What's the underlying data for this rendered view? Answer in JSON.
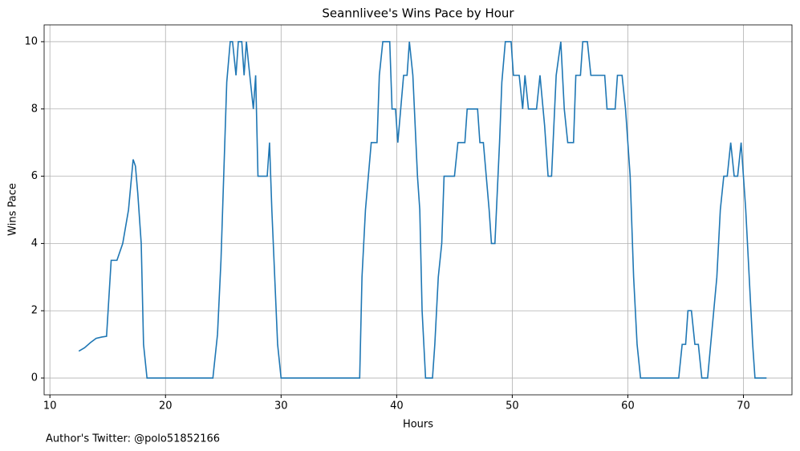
{
  "chart_data": {
    "type": "line",
    "title": "Seannlivee's Wins Pace by Hour",
    "xlabel": "Hours",
    "ylabel": "Wins Pace",
    "footnote": "Author's Twitter: @polo51852166",
    "grid": true,
    "xlim": [
      9.5,
      74.2
    ],
    "ylim": [
      -0.5,
      10.5
    ],
    "xticks": [
      10,
      20,
      30,
      40,
      50,
      60,
      70
    ],
    "yticks": [
      0,
      2,
      4,
      6,
      8,
      10
    ],
    "series": [
      {
        "color": "#1f77b4",
        "x": [
          12.5,
          13,
          13.5,
          14,
          14.5,
          14.9,
          15.3,
          15.8,
          16.3,
          16.8,
          17.2,
          17.4,
          17.6,
          17.9,
          18.1,
          18.4,
          24.1,
          24.5,
          24.8,
          25.3,
          25.6,
          25.8,
          26.1,
          26.3,
          26.6,
          26.8,
          27.0,
          27.2,
          27.6,
          27.8,
          28.0,
          28.8,
          29.0,
          29.2,
          29.7,
          30.0,
          36.8,
          37.0,
          37.3,
          37.8,
          38.3,
          38.5,
          38.8,
          39.4,
          39.6,
          39.9,
          40.1,
          40.6,
          40.9,
          41.1,
          41.4,
          41.8,
          42.0,
          42.2,
          42.5,
          43.1,
          43.3,
          43.6,
          43.9,
          44.1,
          45.0,
          45.3,
          45.9,
          46.1,
          47.0,
          47.2,
          47.5,
          48.0,
          48.2,
          48.5,
          48.9,
          49.1,
          49.4,
          49.9,
          50.1,
          50.6,
          50.9,
          51.1,
          51.4,
          52.1,
          52.4,
          52.8,
          53.1,
          53.4,
          53.8,
          54.2,
          54.5,
          54.8,
          55.3,
          55.5,
          55.9,
          56.1,
          56.5,
          56.8,
          58.0,
          58.2,
          58.9,
          59.1,
          59.5,
          59.8,
          60.2,
          60.5,
          60.8,
          61.1,
          64.4,
          64.7,
          65.0,
          65.2,
          65.5,
          65.8,
          66.1,
          66.4,
          66.9,
          67.3,
          67.7,
          68.0,
          68.3,
          68.6,
          68.9,
          69.2,
          69.5,
          69.8,
          70.2,
          70.5,
          70.8,
          71.0,
          72.0
        ],
        "values": [
          0.8,
          0.9,
          1.05,
          1.18,
          1.22,
          1.24,
          3.5,
          3.5,
          4.0,
          5.0,
          6.5,
          6.3,
          5.5,
          4.0,
          1.0,
          0,
          0,
          1.3,
          3.5,
          8.8,
          10,
          10,
          9,
          10,
          10,
          9,
          10,
          9.3,
          8,
          9,
          6,
          6,
          7,
          5,
          1,
          0,
          0,
          3,
          5,
          7,
          7,
          9,
          10,
          10,
          8,
          8,
          7,
          9,
          9,
          10,
          9,
          6,
          5,
          2,
          0,
          0,
          1,
          3,
          4,
          6,
          6,
          7,
          7,
          8,
          8,
          7,
          7,
          5,
          4,
          4,
          7,
          8.8,
          10,
          10,
          9,
          9,
          8,
          9,
          8,
          8,
          9,
          7.5,
          6,
          6,
          9,
          10,
          8,
          7,
          7,
          9,
          9,
          10,
          10,
          9,
          9,
          8,
          8,
          9,
          9,
          8,
          6,
          3,
          1,
          0,
          0,
          1,
          1,
          2,
          2,
          1,
          1,
          0,
          0,
          1.5,
          3,
          5,
          6,
          6,
          7,
          6,
          6,
          7,
          5,
          3,
          1,
          0,
          0
        ]
      }
    ]
  }
}
